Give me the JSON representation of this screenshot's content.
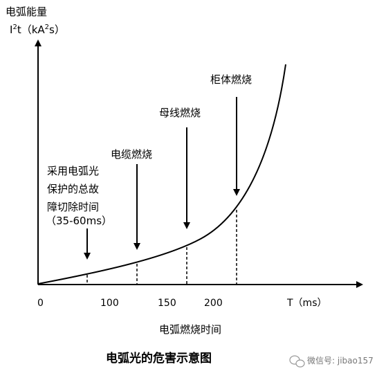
{
  "chart_data": {
    "type": "line",
    "title": "电弧光的危害示意图",
    "ylabel_line1": "电弧能量",
    "ylabel_line2_prefix": "I",
    "ylabel_line2_sup": "2",
    "ylabel_line2_mid": "t（kA",
    "ylabel_line2_sup2": "2",
    "ylabel_line2_suffix": "s）",
    "xlabel": "电弧燃烧时间",
    "x_unit_label": "T（ms）",
    "x_ticks": [
      "0",
      "100",
      "150",
      "200"
    ],
    "curve": "exponential rise of arc energy with burn time",
    "annotations": [
      {
        "id": "protection",
        "lines": [
          "采用电弧光",
          "保护的总故",
          "障切除时间",
          "（35-60ms）"
        ]
      },
      {
        "id": "cable",
        "lines": [
          "电缆燃烧"
        ]
      },
      {
        "id": "busbar",
        "lines": [
          "母线燃烧"
        ]
      },
      {
        "id": "cabinet",
        "lines": [
          "柜体燃烧"
        ]
      }
    ]
  },
  "watermark": "微信号: jibao157"
}
